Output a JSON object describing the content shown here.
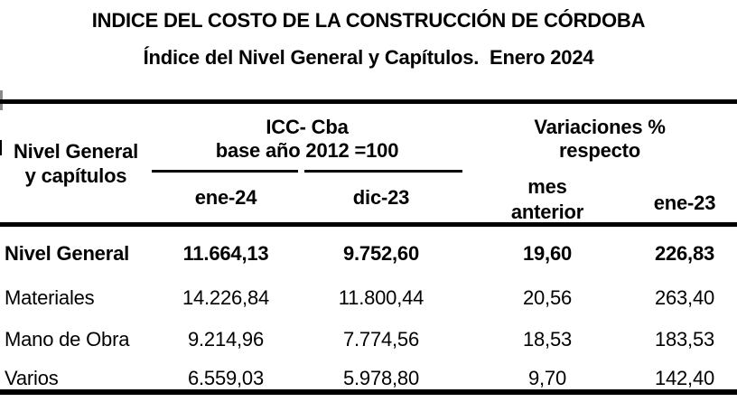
{
  "title": "INDICE DEL COSTO DE LA CONSTRUCCIÓN DE CÓRDOBA",
  "subtitle": "Índice del Nivel General y Capítulos.  Enero 2024",
  "table": {
    "row_header": {
      "line1": "Nivel General",
      "line2": "y capítulos"
    },
    "groups": {
      "icc": {
        "line1": "ICC- Cba",
        "line2": "base año 2012 =100"
      },
      "variaciones": {
        "line1": "Variaciones %",
        "line2": "respecto"
      }
    },
    "columns": {
      "col1": "ene-24",
      "col2": "dic-23",
      "col3": "mes anterior",
      "col4": "ene-23"
    },
    "rows": [
      {
        "label": "Nivel General",
        "values": [
          "11.664,13",
          "9.752,60",
          "19,60",
          "226,83"
        ]
      },
      {
        "label": "Materiales",
        "values": [
          "14.226,84",
          "11.800,44",
          "20,56",
          "263,40"
        ]
      },
      {
        "label": "Mano de Obra",
        "values": [
          "9.214,96",
          "7.774,56",
          "18,53",
          "183,53"
        ]
      },
      {
        "label": "Varios",
        "values": [
          "6.559,03",
          "5.978,80",
          "9,70",
          "142,40"
        ]
      }
    ]
  },
  "colors": {
    "text": "#000000",
    "background": "#ffffff",
    "rule": "#000000",
    "edge_artifact_gray": "#8a8a8a"
  }
}
